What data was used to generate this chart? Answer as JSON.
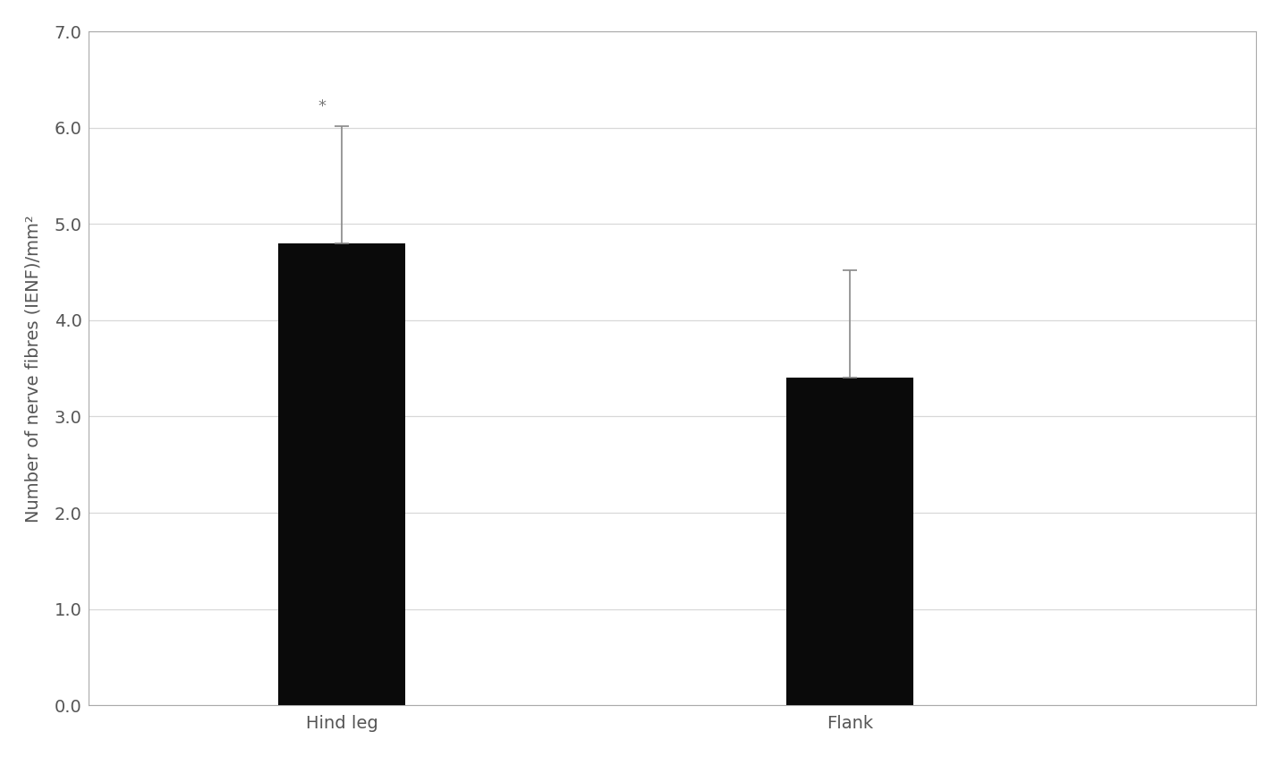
{
  "categories": [
    "Hind leg",
    "Flank"
  ],
  "values": [
    4.8,
    3.4
  ],
  "errors_up": [
    1.22,
    1.12
  ],
  "errors_down": [
    0.0,
    0.0
  ],
  "bar_color": "#0a0a0a",
  "error_color": "#888888",
  "ylabel": "Number of nerve fibres (IENF)/mm²",
  "ylim": [
    0.0,
    7.0
  ],
  "yticks": [
    0.0,
    1.0,
    2.0,
    3.0,
    4.0,
    5.0,
    6.0,
    7.0
  ],
  "ytick_labels": [
    "0.0",
    "1.0",
    "2.0",
    "3.0",
    "4.0",
    "5.0",
    "6.0",
    "7.0"
  ],
  "bar_width": 0.25,
  "x_positions": [
    1,
    2
  ],
  "xlim": [
    0.5,
    2.8
  ],
  "significance_label": "*",
  "significance_bar_index": 0,
  "background_color": "#ffffff",
  "grid_color": "#d8d8d8",
  "tick_fontsize": 14,
  "ylabel_fontsize": 14,
  "annotation_fontsize": 13,
  "spine_color": "#aaaaaa"
}
